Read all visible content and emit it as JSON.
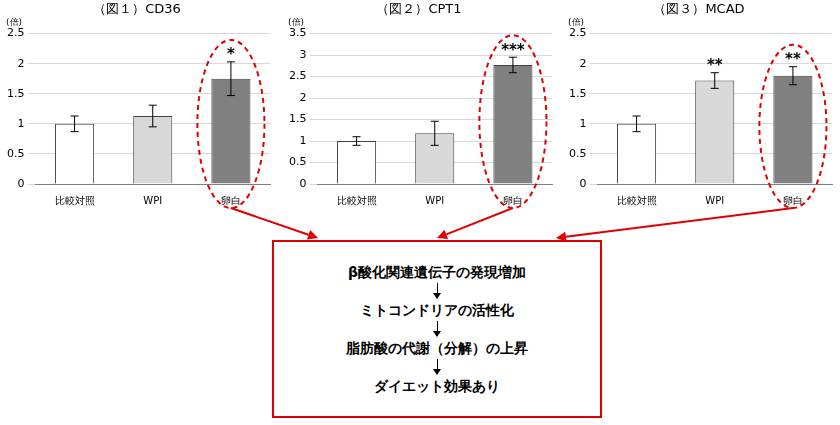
{
  "chart_data": [
    {
      "type": "bar",
      "title": "（図１）CD36",
      "ylabel": "(倍)",
      "categories": [
        "比較対照",
        "WPI",
        "卵白"
      ],
      "values": [
        1.0,
        1.13,
        1.75
      ],
      "errors": [
        0.13,
        0.18,
        0.28
      ],
      "annotations": [
        null,
        null,
        "*"
      ],
      "colors": [
        "#ffffff",
        "#d9d9d9",
        "#808080"
      ],
      "ylim": [
        0,
        2.5
      ],
      "yticks": [
        0,
        0.5,
        1,
        1.5,
        2,
        2.5
      ],
      "grid": true
    },
    {
      "type": "bar",
      "title": "（図２）CPT1",
      "ylabel": "(倍)",
      "categories": [
        "比較対照",
        "WPI",
        "卵白"
      ],
      "values": [
        1.0,
        1.18,
        2.77
      ],
      "errors": [
        0.1,
        0.28,
        0.18
      ],
      "annotations": [
        null,
        null,
        "***"
      ],
      "colors": [
        "#ffffff",
        "#d9d9d9",
        "#808080"
      ],
      "ylim": [
        0,
        3.5
      ],
      "yticks": [
        0,
        0.5,
        1,
        1.5,
        2,
        2.5,
        3,
        3.5
      ],
      "grid": true
    },
    {
      "type": "bar",
      "title": "（図３）MCAD",
      "ylabel": "(倍)",
      "categories": [
        "比較対照",
        "WPI",
        "卵白"
      ],
      "values": [
        1.0,
        1.72,
        1.8
      ],
      "errors": [
        0.13,
        0.13,
        0.15
      ],
      "annotations": [
        null,
        "**",
        "**"
      ],
      "colors": [
        "#ffffff",
        "#d9d9d9",
        "#808080"
      ],
      "ylim": [
        0,
        2.5
      ],
      "yticks": [
        0,
        0.5,
        1,
        1.5,
        2,
        2.5
      ],
      "grid": true
    }
  ],
  "diagram": {
    "box": {
      "steps": [
        "β酸化関連遺伝子の発現増加",
        "ミトコンドリアの活性化",
        "脂肪酸の代謝（分解）の上昇",
        "ダイエット効果あり"
      ]
    }
  }
}
